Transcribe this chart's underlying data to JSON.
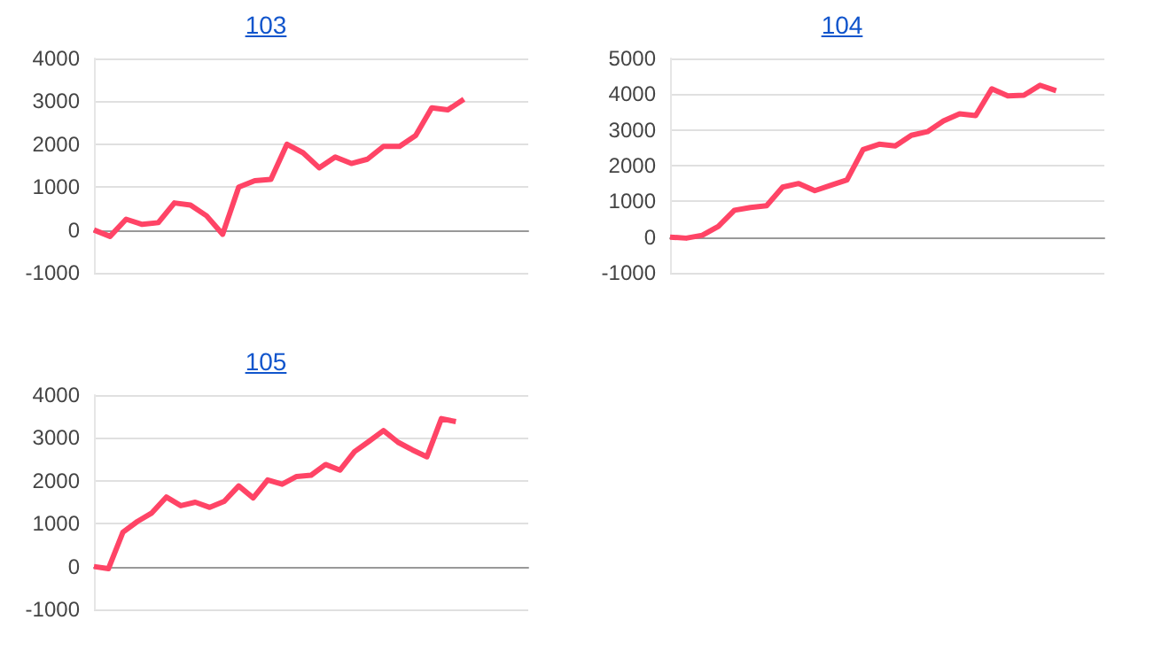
{
  "chart_data": [
    {
      "type": "line",
      "title": "103",
      "categories": [
        null,
        null,
        null,
        null,
        null,
        null,
        null,
        null,
        null,
        null,
        null,
        null,
        null,
        null,
        null,
        null,
        null,
        null,
        null,
        null,
        null,
        null,
        null,
        null,
        null,
        null,
        null,
        null
      ],
      "series": [
        {
          "color": "#ff4466",
          "values": [
            0,
            -150,
            250,
            130,
            170,
            630,
            580,
            330,
            -100,
            1000,
            1150,
            1180,
            2000,
            1800,
            1450,
            1700,
            1550,
            1650,
            1950,
            1950,
            2200,
            2850,
            2800,
            3050,
            null,
            null,
            null,
            null
          ]
        }
      ],
      "ylim": [
        -1000,
        4000
      ],
      "yticks": [
        -1000,
        0,
        1000,
        2000,
        3000,
        4000
      ],
      "grid": "y",
      "tick_labels": "y"
    },
    {
      "type": "line",
      "title": "104",
      "categories": [
        null,
        null,
        null,
        null,
        null,
        null,
        null,
        null,
        null,
        null,
        null,
        null,
        null,
        null,
        null,
        null,
        null,
        null,
        null,
        null,
        null,
        null,
        null,
        null,
        null,
        null,
        null,
        null
      ],
      "series": [
        {
          "color": "#ff4466",
          "values": [
            0,
            -30,
            50,
            300,
            750,
            830,
            880,
            1400,
            1500,
            1300,
            1450,
            1600,
            2450,
            2600,
            2550,
            2850,
            2950,
            3250,
            3450,
            3400,
            4150,
            3950,
            3970,
            4250,
            4100,
            null,
            null,
            null
          ]
        }
      ],
      "ylim": [
        -1000,
        5000
      ],
      "yticks": [
        -1000,
        0,
        1000,
        2000,
        3000,
        4000,
        5000
      ],
      "grid": "y",
      "tick_labels": "y"
    },
    {
      "type": "line",
      "title": "105",
      "categories": [
        null,
        null,
        null,
        null,
        null,
        null,
        null,
        null,
        null,
        null,
        null,
        null,
        null,
        null,
        null,
        null,
        null,
        null,
        null,
        null,
        null,
        null,
        null,
        null,
        null,
        null,
        null,
        null,
        null,
        null,
        null
      ],
      "series": [
        {
          "color": "#ff4466",
          "values": [
            0,
            -50,
            800,
            1050,
            1250,
            1620,
            1420,
            1500,
            1380,
            1520,
            1880,
            1600,
            2020,
            1920,
            2100,
            2130,
            2380,
            2250,
            2680,
            2920,
            3170,
            2900,
            2720,
            2560,
            3450,
            3380,
            null,
            null,
            null,
            null,
            null
          ]
        }
      ],
      "ylim": [
        -1000,
        4000
      ],
      "yticks": [
        -1000,
        0,
        1000,
        2000,
        3000,
        4000
      ],
      "grid": "y",
      "tick_labels": "y"
    }
  ]
}
